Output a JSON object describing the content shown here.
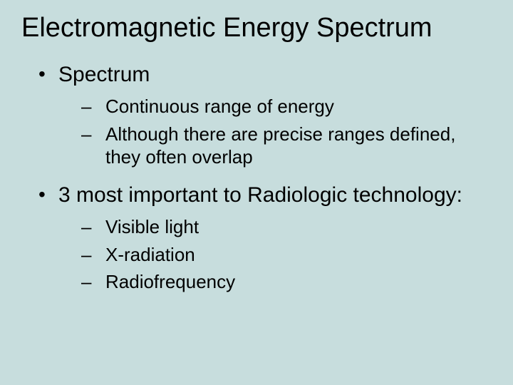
{
  "colors": {
    "background": "#c7dddd",
    "text": "#000000"
  },
  "typography": {
    "title_fontsize": 38,
    "level1_fontsize": 30,
    "level2_fontsize": 26,
    "font_family": "Arial"
  },
  "title": "Electromagnetic Energy Spectrum",
  "bullets": [
    {
      "text": "Spectrum",
      "children": [
        {
          "text": "Continuous range of energy"
        },
        {
          "text": "Although there are precise ranges defined, they often overlap"
        }
      ]
    },
    {
      "text": "3 most important to Radiologic technology:",
      "children": [
        {
          "text": "Visible light"
        },
        {
          "text": "X-radiation"
        },
        {
          "text": "Radiofrequency"
        }
      ]
    }
  ]
}
